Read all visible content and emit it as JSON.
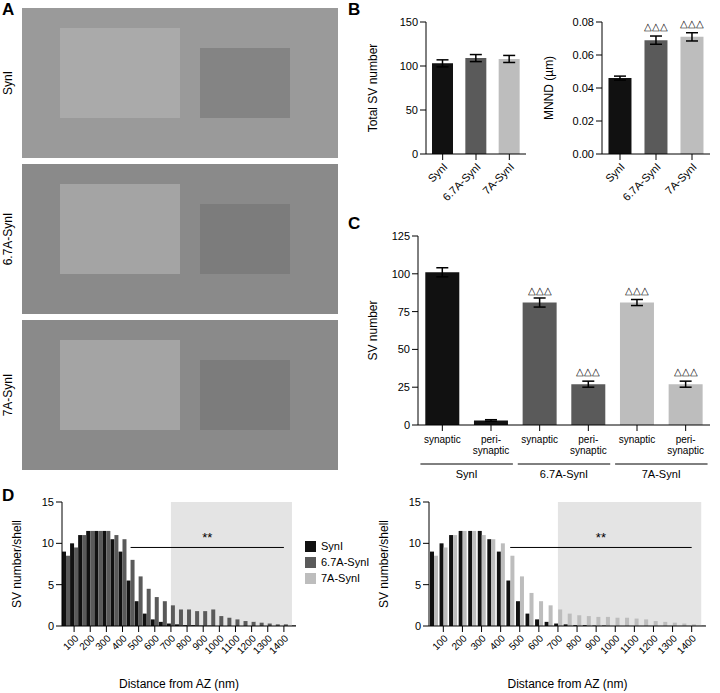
{
  "chart_data": [
    {
      "type": "image",
      "title": "A",
      "categories": [
        "SynI",
        "6.7A-SynI",
        "7A-SynI"
      ]
    },
    {
      "type": "bar",
      "title": "B",
      "y_label": "Total SV number",
      "categories": [
        "SynI",
        "6.7A-SynI",
        "7A-SynI"
      ],
      "values": [
        103,
        109,
        108
      ],
      "errors": [
        4,
        4,
        4
      ],
      "colors": [
        "#111111",
        "#5a5a5a",
        "#bdbdbd"
      ],
      "ylim": [
        0,
        150
      ],
      "yticks": [
        0,
        50,
        100,
        150
      ]
    },
    {
      "type": "bar",
      "y_label": "MNND (µm)",
      "categories": [
        "SynI",
        "6.7A-SynI",
        "7A-SynI"
      ],
      "values": [
        0.046,
        0.069,
        0.071
      ],
      "errors": [
        0.0012,
        0.0025,
        0.0025
      ],
      "colors": [
        "#111111",
        "#5a5a5a",
        "#bdbdbd"
      ],
      "ylim": [
        0,
        0.08
      ],
      "yticks": [
        {
          "value": 0,
          "label": "0.00"
        },
        0.02,
        0.04,
        0.06,
        0.08
      ],
      "annotations": [
        {
          "index": 1,
          "text": "△△△"
        },
        {
          "index": 2,
          "text": "△△△"
        }
      ]
    },
    {
      "type": "bar",
      "title": "C",
      "y_label": "SV number",
      "categories": [
        "synaptic",
        "peri-synaptic",
        "synaptic",
        "peri-synaptic",
        "synaptic",
        "peri-synaptic"
      ],
      "groups": [
        "SynI",
        "6.7A-SynI",
        "7A-SynI"
      ],
      "values": [
        101,
        3,
        81,
        27,
        81,
        27
      ],
      "errors": [
        3,
        0.5,
        3,
        2,
        2,
        2
      ],
      "colors": [
        "#111111",
        "#111111",
        "#5a5a5a",
        "#5a5a5a",
        "#bdbdbd",
        "#bdbdbd"
      ],
      "ylim": [
        0,
        125
      ],
      "yticks": [
        0,
        25,
        50,
        75,
        100,
        125
      ],
      "annotations": [
        {
          "index": 2,
          "text": "△△△"
        },
        {
          "index": 3,
          "text": "△△△"
        },
        {
          "index": 4,
          "text": "△△△"
        },
        {
          "index": 5,
          "text": "△△△"
        }
      ]
    },
    {
      "type": "bar",
      "title": "D",
      "x_label": "Distance from AZ (nm)",
      "y_label": "SV number/shell",
      "x": [
        50,
        100,
        150,
        200,
        250,
        300,
        350,
        400,
        450,
        500,
        550,
        600,
        650,
        700,
        750,
        800,
        850,
        900,
        950,
        1000,
        1050,
        1100,
        1150,
        1200,
        1250,
        1300,
        1350,
        1400,
        1450
      ],
      "series": [
        {
          "name": "SynI",
          "color": "#111111",
          "values": [
            9,
            10,
            11,
            11.5,
            11.5,
            11.5,
            10.5,
            9,
            5.5,
            3,
            1.5,
            0.8,
            0.5,
            0.3,
            0.2,
            0.1,
            0.1,
            0.05,
            0.05,
            0,
            0,
            0,
            0,
            0,
            0,
            0,
            0,
            0,
            0
          ]
        },
        {
          "name": "6.7A-SynI",
          "color": "#5a5a5a",
          "values": [
            8.5,
            9.5,
            11,
            11.5,
            11.5,
            11.5,
            11,
            10.5,
            8,
            6,
            4.5,
            3.5,
            3,
            2.5,
            2,
            2,
            1.8,
            1.8,
            2,
            1.2,
            1,
            0.8,
            0.6,
            0.5,
            0.4,
            0.3,
            0.2,
            0.2,
            0.1
          ]
        }
      ],
      "xlim": [
        25,
        1475
      ],
      "xticks": [
        100,
        200,
        300,
        400,
        500,
        600,
        700,
        800,
        900,
        1000,
        1100,
        1200,
        1300,
        1400
      ],
      "ylim": [
        0,
        15
      ],
      "yticks": [
        0,
        5,
        10,
        15
      ],
      "legend": "right",
      "shaded_range": [
        700,
        1450
      ],
      "annotations": [
        {
          "text": "**",
          "x": [
            450,
            1400
          ],
          "y": 9.5
        }
      ]
    },
    {
      "type": "bar",
      "x_label": "Distance from AZ (nm)",
      "y_label": "SV number/shell",
      "x": [
        50,
        100,
        150,
        200,
        250,
        300,
        350,
        400,
        450,
        500,
        550,
        600,
        650,
        700,
        750,
        800,
        850,
        900,
        950,
        1000,
        1050,
        1100,
        1150,
        1200,
        1250,
        1300,
        1350,
        1400,
        1450
      ],
      "series": [
        {
          "name": "SynI",
          "color": "#111111",
          "values": [
            9,
            10,
            11,
            11.5,
            11.5,
            11.5,
            10.5,
            9,
            5.5,
            3,
            1.5,
            0.8,
            0.5,
            0.3,
            0.2,
            0.1,
            0.1,
            0.05,
            0.05,
            0,
            0,
            0,
            0,
            0,
            0,
            0,
            0,
            0,
            0
          ]
        },
        {
          "name": "7A-SynI",
          "color": "#bdbdbd",
          "values": [
            8.5,
            9.5,
            11,
            11.5,
            11.5,
            11,
            10.5,
            10,
            8.5,
            6,
            4,
            3,
            2.5,
            2,
            1.5,
            1.3,
            1.2,
            1.1,
            1.1,
            1,
            1,
            0.9,
            0.8,
            0.6,
            0.5,
            0.4,
            0.3,
            0.2,
            0.1
          ]
        }
      ],
      "xlim": [
        25,
        1475
      ],
      "xticks": [
        100,
        200,
        300,
        400,
        500,
        600,
        700,
        800,
        900,
        1000,
        1100,
        1200,
        1300,
        1400
      ],
      "ylim": [
        0,
        15
      ],
      "yticks": [
        0,
        5,
        10,
        15
      ],
      "shaded_range": [
        700,
        1450
      ],
      "annotations": [
        {
          "text": "**",
          "x": [
            450,
            1400
          ],
          "y": 9.5
        }
      ]
    }
  ]
}
